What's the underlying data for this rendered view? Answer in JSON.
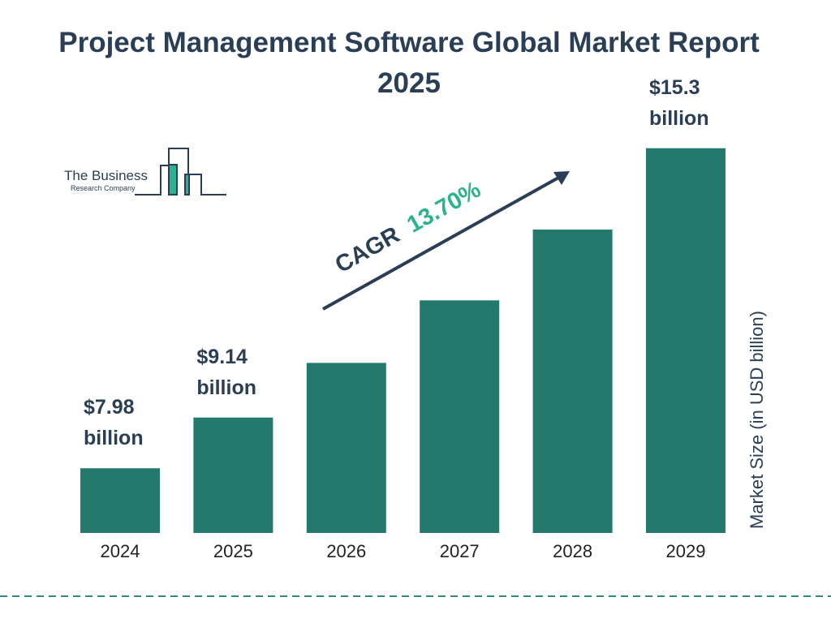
{
  "chart_data": {
    "type": "bar",
    "title": "Project Management Software Global Market Report 2025",
    "categories": [
      "2024",
      "2025",
      "2026",
      "2027",
      "2028",
      "2029"
    ],
    "values": [
      7.98,
      9.14,
      10.39,
      11.82,
      13.44,
      15.3
    ],
    "value_labels": [
      "$7.98 billion",
      "$9.14 billion",
      null,
      null,
      null,
      "$15.3 billion"
    ],
    "color": "#237a6c",
    "ylim": [
      6.5,
      16
    ],
    "y_axis_label": "Market Size (in USD billion)",
    "annotation": {
      "label": "CAGR",
      "value": "13.70%"
    },
    "logo": {
      "line1": "The Business",
      "line2": "Research Company"
    }
  }
}
